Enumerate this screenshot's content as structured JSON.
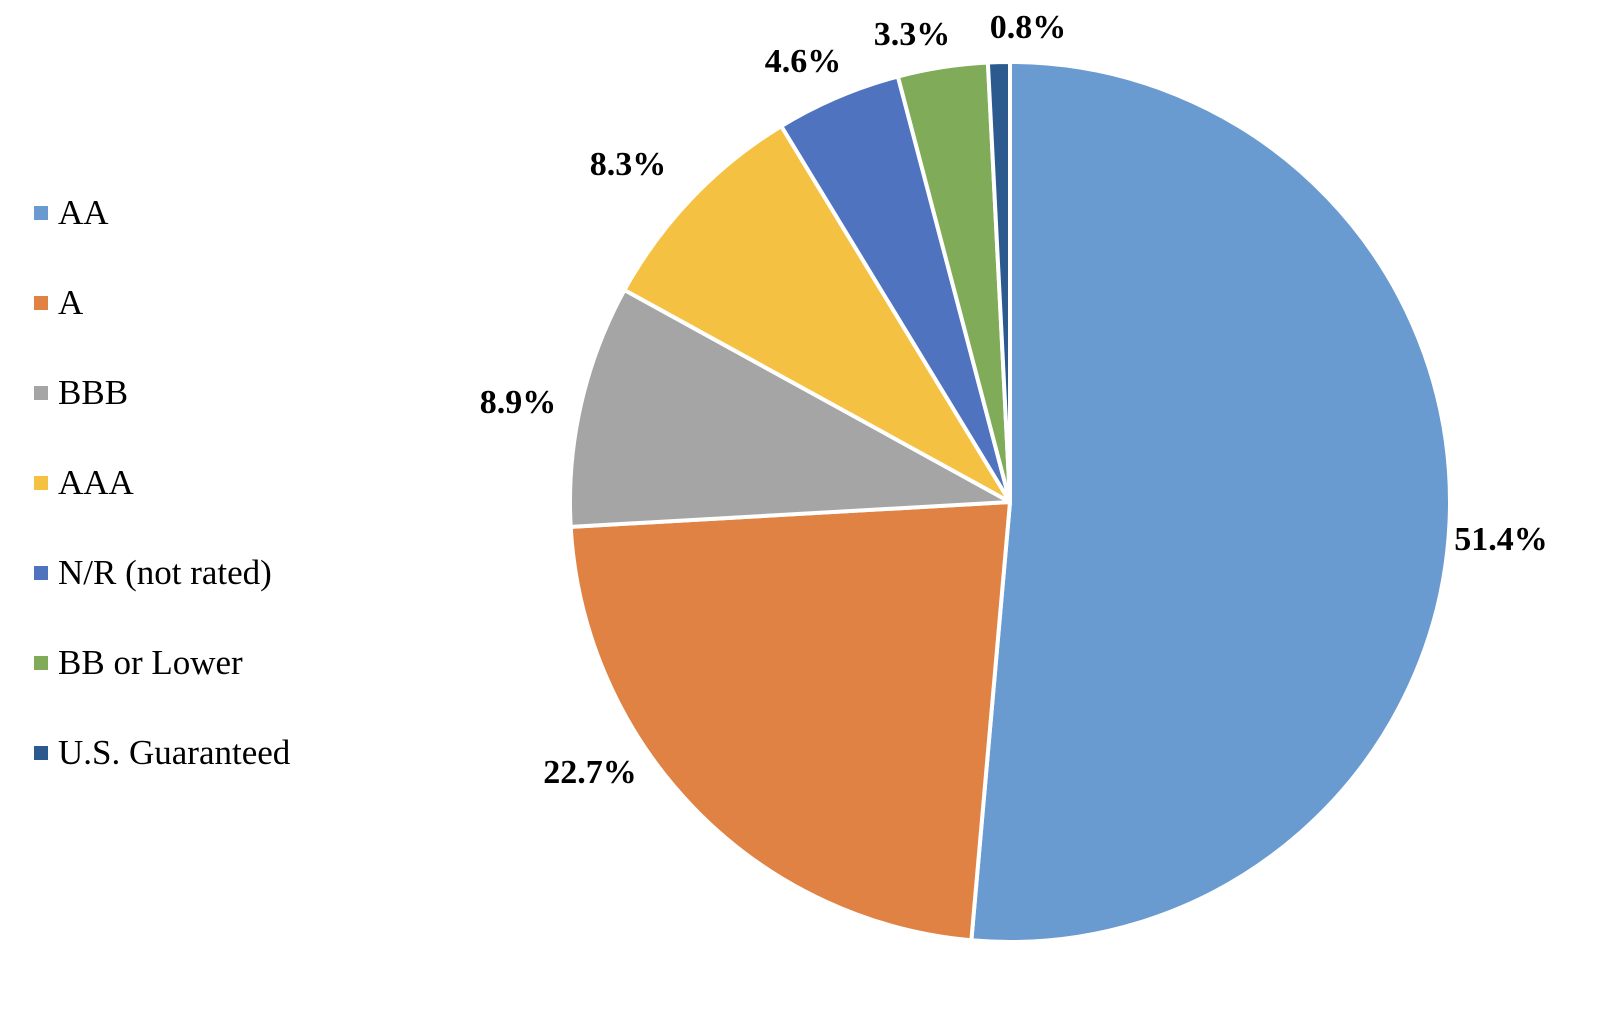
{
  "chart_data": {
    "type": "pie",
    "title": "",
    "legend_position": "left",
    "start_angle_deg": 0,
    "direction": "clockwise",
    "slices": [
      {
        "name": "AA",
        "value": 51.4,
        "label": "51.4%",
        "color": "#699BD0"
      },
      {
        "name": "A",
        "value": 22.7,
        "label": "22.7%",
        "color": "#E08244"
      },
      {
        "name": "BBB",
        "value": 8.9,
        "label": "8.9%",
        "color": "#A5A5A5"
      },
      {
        "name": "AAA",
        "value": 8.3,
        "label": "8.3%",
        "color": "#F5C143"
      },
      {
        "name": "N/R (not rated)",
        "value": 4.6,
        "label": "4.6%",
        "color": "#4F73BF"
      },
      {
        "name": "BB or Lower",
        "value": 3.3,
        "label": "3.3%",
        "color": "#80AB58"
      },
      {
        "name": "U.S. Guaranteed",
        "value": 0.8,
        "label": "0.8%",
        "color": "#2C5A8E"
      }
    ]
  }
}
